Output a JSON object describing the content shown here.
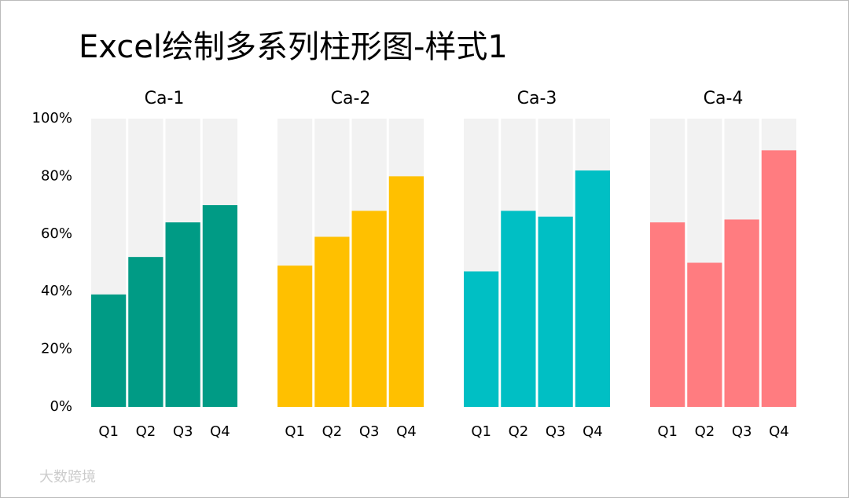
{
  "title": "Excel绘制多系列柱形图-样式1",
  "watermark": "大数跨境",
  "chart_data": [
    {
      "type": "bar",
      "title": "Ca-1",
      "categories": [
        "Q1",
        "Q2",
        "Q3",
        "Q4"
      ],
      "values": [
        39,
        52,
        64,
        70
      ],
      "color": "#009B85",
      "background": "#F2F2F2",
      "ylim": [
        0,
        100
      ],
      "yticks": [
        {
          "value": 0,
          "label": "0%"
        },
        {
          "value": 20,
          "label": "20%"
        },
        {
          "value": 40,
          "label": "40%"
        },
        {
          "value": 60,
          "label": "60%"
        },
        {
          "value": 80,
          "label": "80%"
        },
        {
          "value": 100,
          "label": "100%"
        }
      ]
    },
    {
      "type": "bar",
      "title": "Ca-2",
      "categories": [
        "Q1",
        "Q2",
        "Q3",
        "Q4"
      ],
      "values": [
        49,
        59,
        68,
        80
      ],
      "color": "#FFC000",
      "background": "#F2F2F2",
      "ylim": [
        0,
        100
      ]
    },
    {
      "type": "bar",
      "title": "Ca-3",
      "categories": [
        "Q1",
        "Q2",
        "Q3",
        "Q4"
      ],
      "values": [
        47,
        68,
        66,
        82
      ],
      "color": "#00BFC4",
      "background": "#F2F2F2",
      "ylim": [
        0,
        100
      ]
    },
    {
      "type": "bar",
      "title": "Ca-4",
      "categories": [
        "Q1",
        "Q2",
        "Q3",
        "Q4"
      ],
      "values": [
        64,
        50,
        65,
        89
      ],
      "color": "#FF7C80",
      "background": "#F2F2F2",
      "ylim": [
        0,
        100
      ]
    }
  ]
}
